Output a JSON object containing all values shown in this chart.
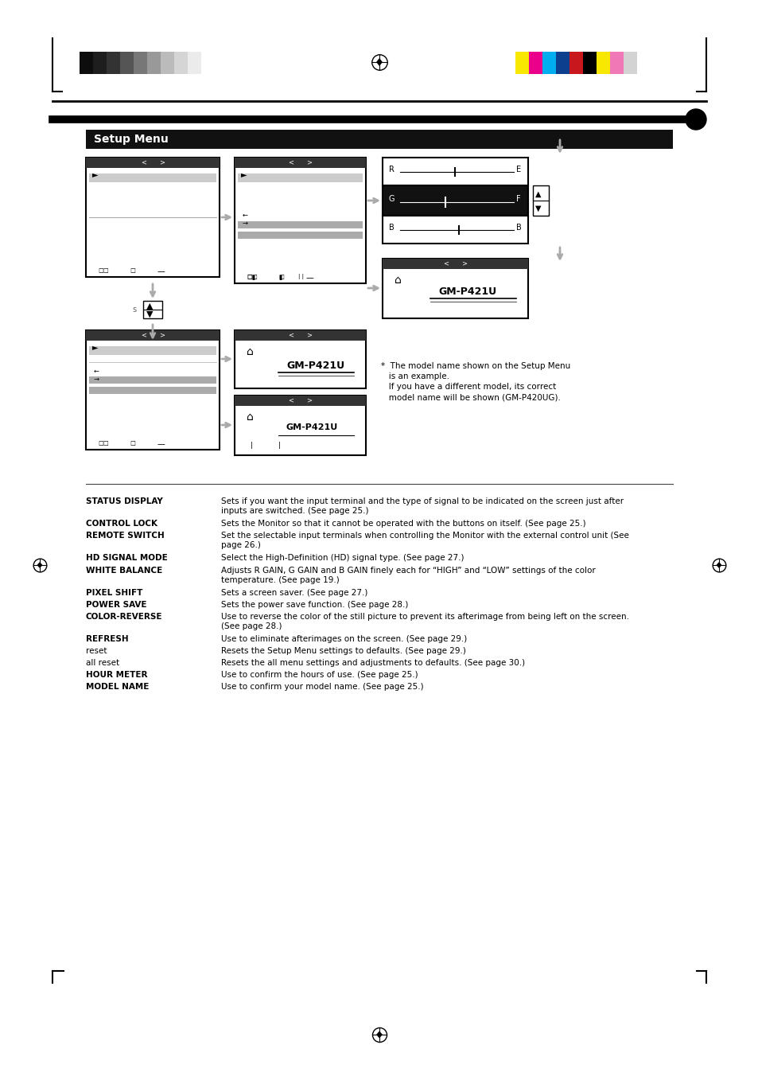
{
  "page_bg": "#ffffff",
  "title_bar_text": "Setup Menu",
  "note_text_lines": [
    "*  The model name shown on the Setup Menu",
    "   is an example.",
    "   If you have a different model, its correct",
    "   model name will be shown (GM-P420UG)."
  ],
  "table_items": [
    [
      "STATUS DISPLAY",
      "Sets if you want the input terminal and the type of signal to be indicated on the screen just after\ninputs are switched. (See page 25.)",
      true
    ],
    [
      "CONTROL LOCK",
      "Sets the Monitor so that it cannot be operated with the buttons on itself. (See page 25.)",
      false
    ],
    [
      "REMOTE SWITCH",
      "Set the selectable input terminals when controlling the Monitor with the external control unit (See\npage 26.)",
      false
    ],
    [
      "HD SIGNAL MODE",
      "Select the High-Definition (HD) signal type. (See page 27.)",
      false
    ],
    [
      "WHITE BALANCE",
      "Adjusts R GAIN, G GAIN and B GAIN finely each for “HIGH” and “LOW” settings of the color\ntemperature. (See page 19.)",
      false
    ],
    [
      "PIXEL SHIFT",
      "Sets a screen saver. (See page 27.)",
      false
    ],
    [
      "POWER SAVE",
      "Sets the power save function. (See page 28.)",
      false
    ],
    [
      "COLOR-REVERSE",
      "Use to reverse the color of the still picture to prevent its afterimage from being left on the screen.\n(See page 28.)",
      false
    ],
    [
      "REFRESH",
      "Use to eliminate afterimages on the screen. (See page 29.)",
      false
    ],
    [
      "reset",
      "Resets the Setup Menu settings to defaults. (See page 29.)",
      false
    ],
    [
      "all reset",
      "Resets the all menu settings and adjustments to defaults. (See page 30.)",
      false
    ],
    [
      "HOUR METER",
      "Use to confirm the hours of use. (See page 25.)",
      false
    ],
    [
      "MODEL NAME",
      "Use to confirm your model name. (See page 25.)",
      false
    ]
  ],
  "gray_bar_colors": [
    "#0d0d0d",
    "#1e1e1e",
    "#333333",
    "#555555",
    "#777777",
    "#999999",
    "#bbbbbb",
    "#d5d5d5",
    "#ebebeb",
    "#ffffff"
  ],
  "color_bar_colors": [
    "#f8e800",
    "#eb008b",
    "#00aeef",
    "#0d3f8f",
    "#c8171d",
    "#000000",
    "#f8e800",
    "#f178b6",
    "#d3d3d3"
  ]
}
